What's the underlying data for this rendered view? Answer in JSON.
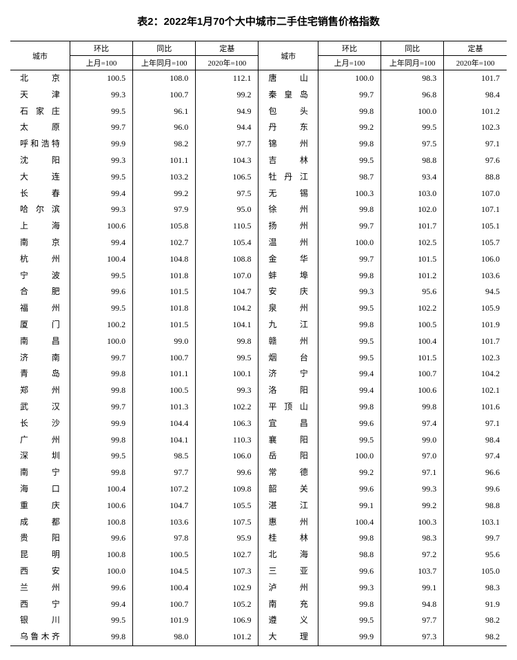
{
  "title": "表2：2022年1月70个大中城市二手住宅销售价格指数",
  "header": {
    "city": "城市",
    "col1": "环比",
    "col2": "同比",
    "col3": "定基",
    "sub1": "上月=100",
    "sub2": "上年同月=100",
    "sub3": "2020年=100"
  },
  "left": [
    {
      "c": "北　　京",
      "v1": "100.5",
      "v2": "108.0",
      "v3": "112.1"
    },
    {
      "c": "天　　津",
      "v1": "99.3",
      "v2": "100.7",
      "v3": "99.2"
    },
    {
      "c": "石 家 庄",
      "v1": "99.5",
      "v2": "96.1",
      "v3": "94.9"
    },
    {
      "c": "太　　原",
      "v1": "99.7",
      "v2": "96.0",
      "v3": "94.4"
    },
    {
      "c": "呼和浩特",
      "v1": "99.9",
      "v2": "98.2",
      "v3": "97.7"
    },
    {
      "c": "沈　　阳",
      "v1": "99.3",
      "v2": "101.1",
      "v3": "104.3"
    },
    {
      "c": "大　　连",
      "v1": "99.5",
      "v2": "103.2",
      "v3": "106.5"
    },
    {
      "c": "长　　春",
      "v1": "99.4",
      "v2": "99.2",
      "v3": "97.5"
    },
    {
      "c": "哈 尔 滨",
      "v1": "99.3",
      "v2": "97.9",
      "v3": "95.0"
    },
    {
      "c": "上　　海",
      "v1": "100.6",
      "v2": "105.8",
      "v3": "110.5"
    },
    {
      "c": "南　　京",
      "v1": "99.4",
      "v2": "102.7",
      "v3": "105.4"
    },
    {
      "c": "杭　　州",
      "v1": "100.4",
      "v2": "104.8",
      "v3": "108.8"
    },
    {
      "c": "宁　　波",
      "v1": "99.5",
      "v2": "101.8",
      "v3": "107.0"
    },
    {
      "c": "合　　肥",
      "v1": "99.6",
      "v2": "101.5",
      "v3": "104.7"
    },
    {
      "c": "福　　州",
      "v1": "99.5",
      "v2": "101.8",
      "v3": "104.2"
    },
    {
      "c": "厦　　门",
      "v1": "100.2",
      "v2": "101.5",
      "v3": "104.1"
    },
    {
      "c": "南　　昌",
      "v1": "100.0",
      "v2": "99.0",
      "v3": "99.8"
    },
    {
      "c": "济　　南",
      "v1": "99.7",
      "v2": "100.7",
      "v3": "99.5"
    },
    {
      "c": "青　　岛",
      "v1": "99.8",
      "v2": "101.1",
      "v3": "100.1"
    },
    {
      "c": "郑　　州",
      "v1": "99.8",
      "v2": "100.5",
      "v3": "99.3"
    },
    {
      "c": "武　　汉",
      "v1": "99.7",
      "v2": "101.3",
      "v3": "102.2"
    },
    {
      "c": "长　　沙",
      "v1": "99.9",
      "v2": "104.4",
      "v3": "106.3"
    },
    {
      "c": "广　　州",
      "v1": "99.8",
      "v2": "104.1",
      "v3": "110.3"
    },
    {
      "c": "深　　圳",
      "v1": "99.5",
      "v2": "98.5",
      "v3": "106.0"
    },
    {
      "c": "南　　宁",
      "v1": "99.8",
      "v2": "97.7",
      "v3": "99.6"
    },
    {
      "c": "海　　口",
      "v1": "100.4",
      "v2": "107.2",
      "v3": "109.8"
    },
    {
      "c": "重　　庆",
      "v1": "100.6",
      "v2": "104.7",
      "v3": "105.5"
    },
    {
      "c": "成　　都",
      "v1": "100.8",
      "v2": "103.6",
      "v3": "107.5"
    },
    {
      "c": "贵　　阳",
      "v1": "99.6",
      "v2": "97.8",
      "v3": "95.9"
    },
    {
      "c": "昆　　明",
      "v1": "100.8",
      "v2": "100.5",
      "v3": "102.7"
    },
    {
      "c": "西　　安",
      "v1": "100.0",
      "v2": "104.5",
      "v3": "107.3"
    },
    {
      "c": "兰　　州",
      "v1": "99.6",
      "v2": "100.4",
      "v3": "102.9"
    },
    {
      "c": "西　　宁",
      "v1": "99.4",
      "v2": "100.7",
      "v3": "105.2"
    },
    {
      "c": "银　　川",
      "v1": "99.5",
      "v2": "101.9",
      "v3": "106.9"
    },
    {
      "c": "乌鲁木齐",
      "v1": "99.8",
      "v2": "98.0",
      "v3": "101.2"
    }
  ],
  "right": [
    {
      "c": "唐　　山",
      "v1": "100.0",
      "v2": "98.3",
      "v3": "101.7"
    },
    {
      "c": "秦 皇 岛",
      "v1": "99.7",
      "v2": "96.8",
      "v3": "98.4"
    },
    {
      "c": "包　　头",
      "v1": "99.8",
      "v2": "100.0",
      "v3": "101.2"
    },
    {
      "c": "丹　　东",
      "v1": "99.2",
      "v2": "99.5",
      "v3": "102.3"
    },
    {
      "c": "锦　　州",
      "v1": "99.8",
      "v2": "97.5",
      "v3": "97.1"
    },
    {
      "c": "吉　　林",
      "v1": "99.5",
      "v2": "98.8",
      "v3": "97.6"
    },
    {
      "c": "牡 丹 江",
      "v1": "98.7",
      "v2": "93.4",
      "v3": "88.8"
    },
    {
      "c": "无　　锡",
      "v1": "100.3",
      "v2": "103.0",
      "v3": "107.0"
    },
    {
      "c": "徐　　州",
      "v1": "99.8",
      "v2": "102.0",
      "v3": "107.1"
    },
    {
      "c": "扬　　州",
      "v1": "99.7",
      "v2": "101.7",
      "v3": "105.1"
    },
    {
      "c": "温　　州",
      "v1": "100.0",
      "v2": "102.5",
      "v3": "105.7"
    },
    {
      "c": "金　　华",
      "v1": "99.7",
      "v2": "101.5",
      "v3": "106.0"
    },
    {
      "c": "蚌　　埠",
      "v1": "99.8",
      "v2": "101.2",
      "v3": "103.6"
    },
    {
      "c": "安　　庆",
      "v1": "99.3",
      "v2": "95.6",
      "v3": "94.5"
    },
    {
      "c": "泉　　州",
      "v1": "99.5",
      "v2": "102.2",
      "v3": "105.9"
    },
    {
      "c": "九　　江",
      "v1": "99.8",
      "v2": "100.5",
      "v3": "101.9"
    },
    {
      "c": "赣　　州",
      "v1": "99.5",
      "v2": "100.4",
      "v3": "101.7"
    },
    {
      "c": "烟　　台",
      "v1": "99.5",
      "v2": "101.5",
      "v3": "102.3"
    },
    {
      "c": "济　　宁",
      "v1": "99.4",
      "v2": "100.7",
      "v3": "104.2"
    },
    {
      "c": "洛　　阳",
      "v1": "99.4",
      "v2": "100.6",
      "v3": "102.1"
    },
    {
      "c": "平 顶 山",
      "v1": "99.8",
      "v2": "99.8",
      "v3": "101.6"
    },
    {
      "c": "宜　　昌",
      "v1": "99.6",
      "v2": "97.4",
      "v3": "97.1"
    },
    {
      "c": "襄　　阳",
      "v1": "99.5",
      "v2": "99.0",
      "v3": "98.4"
    },
    {
      "c": "岳　　阳",
      "v1": "100.0",
      "v2": "97.0",
      "v3": "97.4"
    },
    {
      "c": "常　　德",
      "v1": "99.2",
      "v2": "97.1",
      "v3": "96.6"
    },
    {
      "c": "韶　　关",
      "v1": "99.6",
      "v2": "99.3",
      "v3": "99.6"
    },
    {
      "c": "湛　　江",
      "v1": "99.1",
      "v2": "99.2",
      "v3": "98.8"
    },
    {
      "c": "惠　　州",
      "v1": "100.4",
      "v2": "100.3",
      "v3": "103.1"
    },
    {
      "c": "桂　　林",
      "v1": "99.8",
      "v2": "98.3",
      "v3": "99.7"
    },
    {
      "c": "北　　海",
      "v1": "98.8",
      "v2": "97.2",
      "v3": "95.6"
    },
    {
      "c": "三　　亚",
      "v1": "99.6",
      "v2": "103.7",
      "v3": "105.0"
    },
    {
      "c": "泸　　州",
      "v1": "99.3",
      "v2": "99.1",
      "v3": "98.3"
    },
    {
      "c": "南　　充",
      "v1": "99.8",
      "v2": "94.8",
      "v3": "91.9"
    },
    {
      "c": "遵　　义",
      "v1": "99.5",
      "v2": "97.7",
      "v3": "98.2"
    },
    {
      "c": "大　　理",
      "v1": "99.9",
      "v2": "97.3",
      "v3": "98.2"
    }
  ]
}
